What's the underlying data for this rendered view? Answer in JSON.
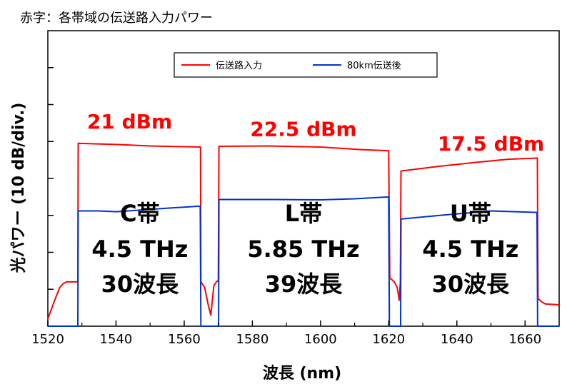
{
  "note": {
    "text": "赤字：各帯域の伝送路入力パワー",
    "color": "#ff0000"
  },
  "chart_data": {
    "type": "line",
    "xlabel": "波長 (nm)",
    "ylabel": "光パワー (10 dB/div.)",
    "xlim": [
      1520,
      1670
    ],
    "x_ticks": [
      1520,
      1540,
      1560,
      1580,
      1600,
      1620,
      1640,
      1660
    ],
    "y_divisions": 8,
    "colors": {
      "input": "#ff0000",
      "after": "#0033cc"
    },
    "legend": {
      "placement": "top",
      "entries": [
        "伝送路入力",
        "80km伝送後"
      ]
    },
    "series": [
      {
        "name": "伝送路入力",
        "x": [
          1520,
          1522,
          1523.5,
          1524.5,
          1525.5,
          1528,
          1528.8,
          1528.9,
          1540,
          1550,
          1560,
          1564.8,
          1564.9,
          1566,
          1567,
          1567.8,
          1568.7,
          1569.6,
          1570,
          1570.2,
          1585,
          1600,
          1612,
          1620,
          1620.3,
          1621.5,
          1622.5,
          1623.1,
          1623.4,
          1623.6,
          1635,
          1645,
          1655,
          1663.6,
          1663.8,
          1665,
          1666,
          1670
        ],
        "y": [
          0.2,
          0.7,
          1.05,
          1.15,
          1.2,
          1.2,
          1.2,
          4.95,
          4.92,
          4.88,
          4.86,
          4.85,
          1.2,
          1.05,
          0.6,
          0.3,
          1.1,
          1.22,
          1.22,
          4.87,
          4.88,
          4.85,
          4.78,
          4.75,
          1.3,
          1.22,
          1.05,
          0.7,
          1.2,
          4.2,
          4.33,
          4.43,
          4.52,
          4.55,
          0.75,
          0.65,
          0.6,
          0.58
        ]
      },
      {
        "name": "80km伝送後",
        "x": [
          1520,
          1528.8,
          1528.9,
          1535,
          1540,
          1548,
          1556,
          1564.7,
          1564.9,
          1570.1,
          1570.2,
          1585,
          1600,
          1610,
          1620,
          1620.2,
          1623.5,
          1623.6,
          1635,
          1650,
          1663.5,
          1663.7,
          1670
        ],
        "y": [
          0,
          0,
          3.12,
          3.12,
          3.1,
          3.15,
          3.2,
          3.25,
          0,
          0,
          3.43,
          3.43,
          3.42,
          3.45,
          3.5,
          0,
          0,
          2.9,
          3.0,
          3.12,
          3.08,
          0,
          0
        ]
      }
    ],
    "annotations": {
      "powers": [
        {
          "text": "21 dBm",
          "x": 1544,
          "y": 5.35
        },
        {
          "text": "22.5 dBm",
          "x": 1595,
          "y": 5.15
        },
        {
          "text": "17.5 dBm",
          "x": 1650,
          "y": 4.75
        }
      ],
      "bands": [
        {
          "lines": [
            "C帯",
            "4.5 THz",
            "30波長"
          ],
          "x": 1547
        },
        {
          "lines": [
            "L帯",
            "5.85 THz",
            "39波長"
          ],
          "x": 1595
        },
        {
          "lines": [
            "U帯",
            "4.5 THz",
            "30波長"
          ],
          "x": 1644
        }
      ]
    }
  }
}
